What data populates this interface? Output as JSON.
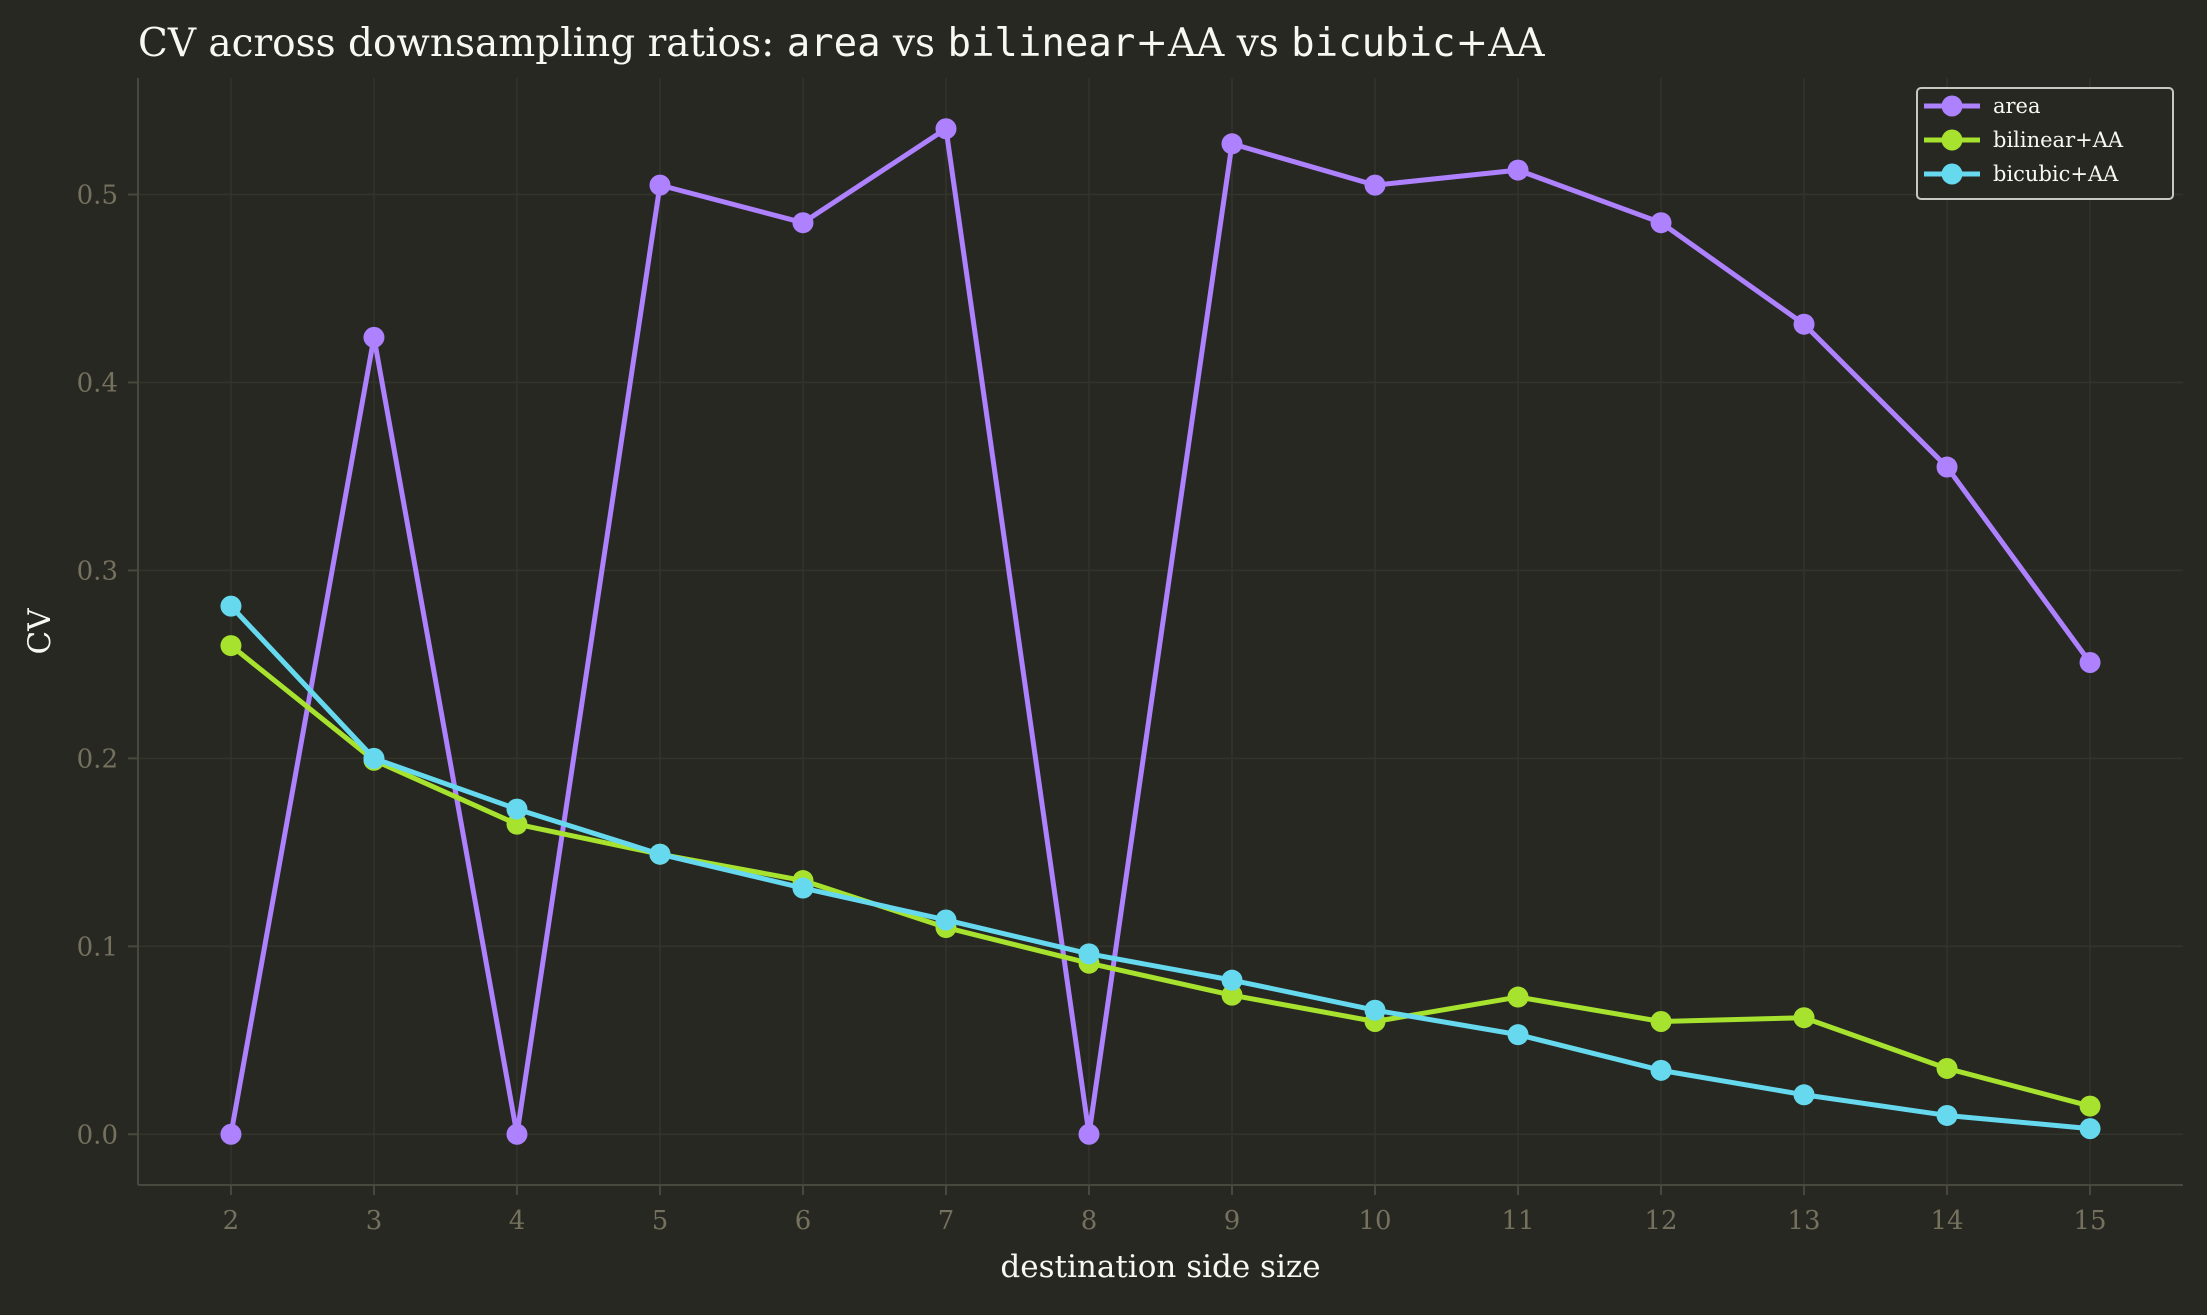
{
  "chart_data": {
    "type": "line",
    "title_parts": [
      {
        "text": "CV across downsampling ratios: ",
        "mono": false
      },
      {
        "text": "area",
        "mono": true
      },
      {
        "text": " vs ",
        "mono": false
      },
      {
        "text": "bilinear",
        "mono": true
      },
      {
        "text": "+AA vs ",
        "mono": false
      },
      {
        "text": "bicubic",
        "mono": true
      },
      {
        "text": "+AA",
        "mono": false
      }
    ],
    "xlabel": "destination side size",
    "ylabel": "CV",
    "x": [
      2,
      3,
      4,
      5,
      6,
      7,
      8,
      9,
      10,
      11,
      12,
      13,
      14,
      15
    ],
    "xticks": [
      "2",
      "3",
      "4",
      "5",
      "6",
      "7",
      "8",
      "9",
      "10",
      "11",
      "12",
      "13",
      "14",
      "15"
    ],
    "yticks": [
      0.0,
      0.1,
      0.2,
      0.3,
      0.4,
      0.5
    ],
    "ytick_labels": [
      "0.0",
      "0.1",
      "0.2",
      "0.3",
      "0.4",
      "0.5"
    ],
    "xlim": [
      1.35,
      15.65
    ],
    "ylim": [
      -0.027,
      0.562
    ],
    "grid": true,
    "legend_position": "top-right",
    "series": [
      {
        "name": "area",
        "color": "#ae81ff",
        "values": [
          0.0,
          0.424,
          0.0,
          0.505,
          0.485,
          0.535,
          0.0,
          0.527,
          0.505,
          0.513,
          0.485,
          0.431,
          0.355,
          0.251
        ]
      },
      {
        "name": "bilinear+AA",
        "color": "#a6e22e",
        "values": [
          0.26,
          0.199,
          0.165,
          0.149,
          0.135,
          0.11,
          0.091,
          0.074,
          0.06,
          0.073,
          0.06,
          0.062,
          0.035,
          0.015
        ]
      },
      {
        "name": "bicubic+AA",
        "color": "#66d9ef",
        "values": [
          0.281,
          0.2,
          0.173,
          0.149,
          0.131,
          0.114,
          0.096,
          0.082,
          0.066,
          0.053,
          0.034,
          0.021,
          0.01,
          0.003
        ]
      }
    ]
  },
  "colors": {
    "background": "#272822",
    "axis": "#49483e",
    "grid": "#33342c",
    "tick_text": "#75715e",
    "label_text": "#f8f8f2",
    "legend_border": "#c8c8c0"
  }
}
